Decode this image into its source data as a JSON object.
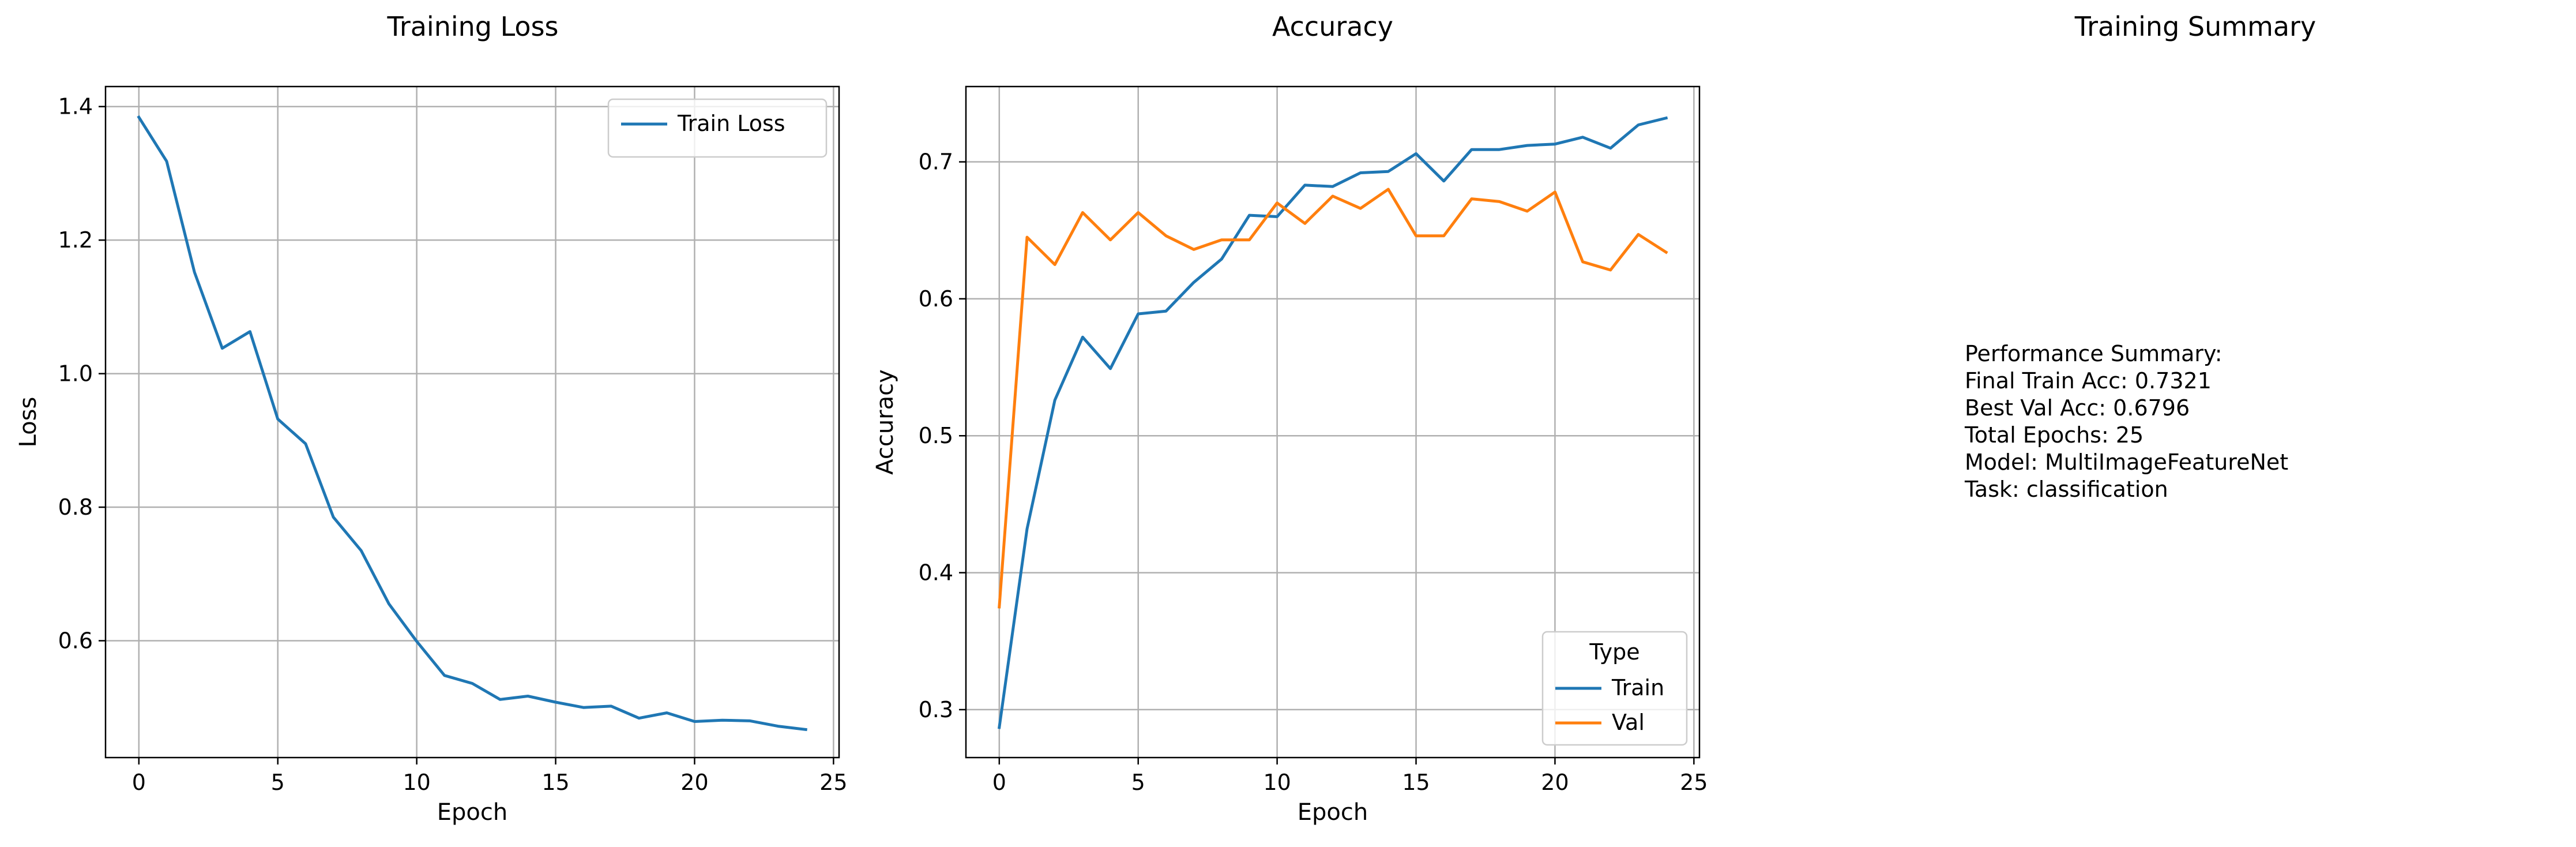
{
  "colors": {
    "train": "#1f77b4",
    "val": "#ff7f0e",
    "grid": "#b0b0b0",
    "axis": "#000000",
    "legend_border": "#cccccc"
  },
  "chart_data": [
    {
      "type": "line",
      "title": "Training Loss",
      "xlabel": "Epoch",
      "ylabel": "Loss",
      "xlim": [
        -1.2,
        25.2
      ],
      "ylim": [
        0.425,
        1.43
      ],
      "xticks": [
        0,
        5,
        10,
        15,
        20,
        25
      ],
      "yticks": [
        0.6,
        0.8,
        1.0,
        1.2,
        1.4
      ],
      "ytick_labels": [
        "0.6",
        "0.8",
        "1.0",
        "1.2",
        "1.4"
      ],
      "grid": true,
      "legend": {
        "placement": "top-right",
        "title": ""
      },
      "x": [
        0,
        1,
        2,
        3,
        4,
        5,
        6,
        7,
        8,
        9,
        10,
        11,
        12,
        13,
        14,
        15,
        16,
        17,
        18,
        19,
        20,
        21,
        22,
        23,
        24
      ],
      "series": [
        {
          "name": "Train Loss",
          "color_key": "train",
          "values": [
            1.384,
            1.318,
            1.152,
            1.038,
            1.063,
            0.932,
            0.895,
            0.785,
            0.735,
            0.655,
            0.599,
            0.548,
            0.536,
            0.512,
            0.517,
            0.508,
            0.5,
            0.502,
            0.484,
            0.492,
            0.479,
            0.481,
            0.48,
            0.472,
            0.467
          ]
        }
      ]
    },
    {
      "type": "line",
      "title": "Accuracy",
      "xlabel": "Epoch",
      "ylabel": "Accuracy",
      "xlim": [
        -1.2,
        25.2
      ],
      "ylim": [
        0.265,
        0.755
      ],
      "xticks": [
        0,
        5,
        10,
        15,
        20,
        25
      ],
      "yticks": [
        0.3,
        0.4,
        0.5,
        0.6,
        0.7
      ],
      "ytick_labels": [
        "0.3",
        "0.4",
        "0.5",
        "0.6",
        "0.7"
      ],
      "grid": true,
      "legend": {
        "placement": "bottom-right",
        "title": "Type"
      },
      "x": [
        0,
        1,
        2,
        3,
        4,
        5,
        6,
        7,
        8,
        9,
        10,
        11,
        12,
        13,
        14,
        15,
        16,
        17,
        18,
        19,
        20,
        21,
        22,
        23,
        24
      ],
      "series": [
        {
          "name": "Train",
          "color_key": "train",
          "values": [
            0.287,
            0.432,
            0.526,
            0.572,
            0.549,
            0.589,
            0.591,
            0.612,
            0.629,
            0.661,
            0.66,
            0.683,
            0.682,
            0.692,
            0.693,
            0.706,
            0.686,
            0.709,
            0.709,
            0.712,
            0.713,
            0.718,
            0.71,
            0.727,
            0.732
          ]
        },
        {
          "name": "Val",
          "color_key": "val",
          "values": [
            0.375,
            0.645,
            0.625,
            0.663,
            0.643,
            0.663,
            0.646,
            0.636,
            0.643,
            0.643,
            0.67,
            0.655,
            0.675,
            0.666,
            0.68,
            0.646,
            0.646,
            0.673,
            0.671,
            0.664,
            0.678,
            0.627,
            0.621,
            0.647,
            0.634
          ]
        }
      ]
    }
  ],
  "summary": {
    "title": "Training Summary",
    "lines": [
      "Performance Summary:",
      "Final Train Acc: 0.7321",
      "Best Val Acc: 0.6796",
      "Total Epochs: 25",
      "Model: MultiImageFeatureNet",
      "Task: classification"
    ]
  }
}
